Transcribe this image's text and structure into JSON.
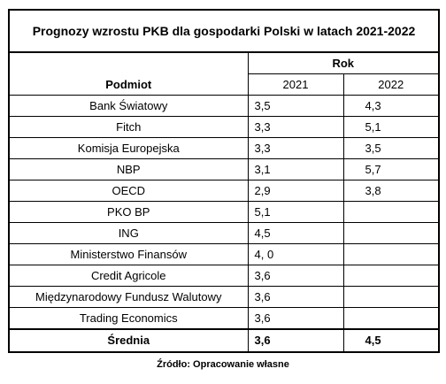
{
  "table": {
    "title": "Prognozy wzrostu PKB dla gospodarki Polski w latach 2021-2022",
    "group_header": "Rok",
    "name_header": "Podmiot",
    "years": [
      "2021",
      "2022"
    ],
    "rows": [
      {
        "name": "Bank Światowy",
        "y2021": "3,5",
        "y2022": "4,3"
      },
      {
        "name": "Fitch",
        "y2021": "3,3",
        "y2022": "5,1"
      },
      {
        "name": "Komisja Europejska",
        "y2021": "3,3",
        "y2022": "3,5"
      },
      {
        "name": "NBP",
        "y2021": "3,1",
        "y2022": "5,7"
      },
      {
        "name": "OECD",
        "y2021": "2,9",
        "y2022": "3,8"
      },
      {
        "name": "PKO BP",
        "y2021": "5,1",
        "y2022": ""
      },
      {
        "name": "ING",
        "y2021": "4,5",
        "y2022": ""
      },
      {
        "name": "Ministerstwo Finansów",
        "y2021": "4, 0",
        "y2022": ""
      },
      {
        "name": "Credit Agricole",
        "y2021": "3,6",
        "y2022": ""
      },
      {
        "name": "Międzynarodowy Fundusz Walutowy",
        "y2021": "3,6",
        "y2022": ""
      },
      {
        "name": "Trading Economics",
        "y2021": "3,6",
        "y2022": ""
      }
    ],
    "average": {
      "label": "Średnia",
      "y2021": "3,6",
      "y2022": "4,5"
    }
  },
  "source": "Źródło: Opracowanie własne"
}
